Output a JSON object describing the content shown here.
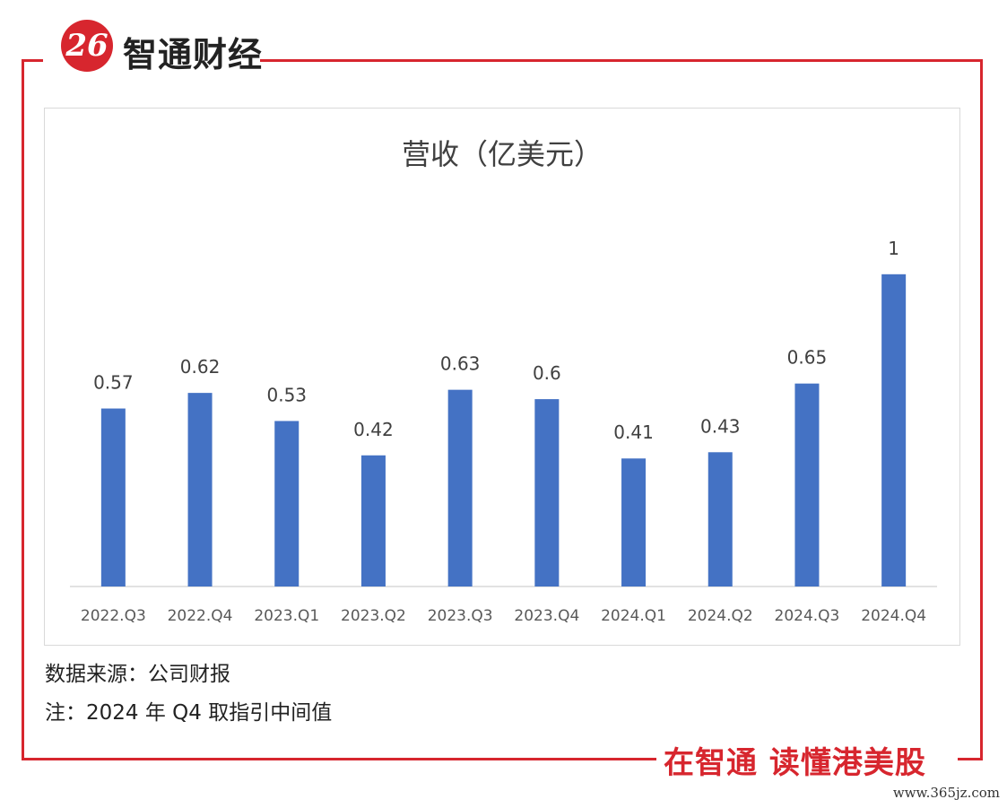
{
  "brand": {
    "logo_mark": "26",
    "name": "智通财经",
    "color": "#d7262e"
  },
  "footer": {
    "source": "数据来源：公司财报",
    "note": "注：2024 年 Q4 取指引中间值",
    "slogan": "在智通  读懂港美股",
    "watermark": "www.365jz.com"
  },
  "chart_data": {
    "type": "bar",
    "title": "营收（亿美元）",
    "xlabel": "",
    "ylabel": "",
    "categories": [
      "2022.Q3",
      "2022.Q4",
      "2023.Q1",
      "2023.Q2",
      "2023.Q3",
      "2023.Q4",
      "2024.Q1",
      "2024.Q2",
      "2024.Q3",
      "2024.Q4"
    ],
    "values": [
      0.57,
      0.62,
      0.53,
      0.42,
      0.63,
      0.6,
      0.41,
      0.43,
      0.65,
      1
    ],
    "value_labels": [
      "0.57",
      "0.62",
      "0.53",
      "0.42",
      "0.63",
      "0.6",
      "0.41",
      "0.43",
      "0.65",
      "1"
    ],
    "ylim": [
      0,
      1.1
    ],
    "grid": false,
    "legend": "none",
    "bar_color": "#4472c4"
  }
}
